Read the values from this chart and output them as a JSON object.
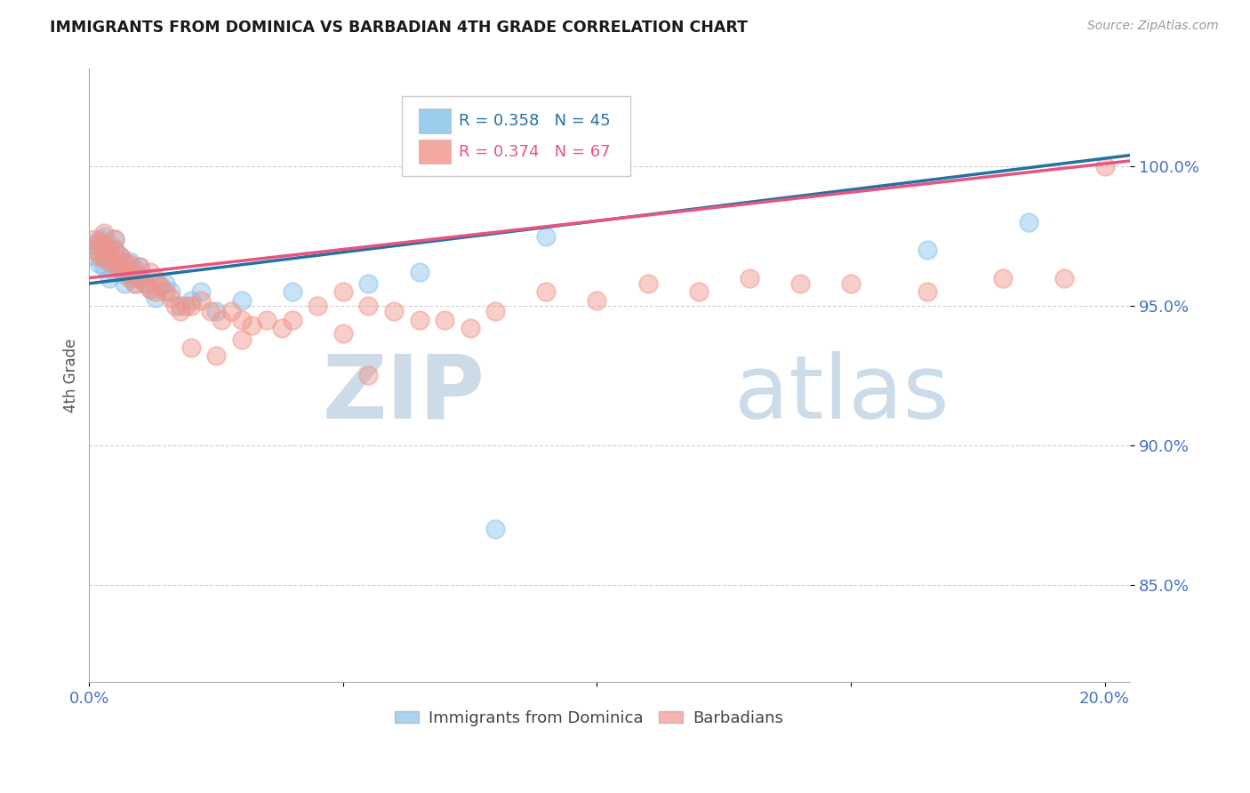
{
  "title": "IMMIGRANTS FROM DOMINICA VS BARBADIAN 4TH GRADE CORRELATION CHART",
  "source_text": "Source: ZipAtlas.com",
  "ylabel": "4th Grade",
  "xlim": [
    0.0,
    0.205
  ],
  "ylim": [
    0.815,
    1.035
  ],
  "yticks": [
    0.85,
    0.9,
    0.95,
    1.0
  ],
  "ytick_labels": [
    "85.0%",
    "90.0%",
    "95.0%",
    "100.0%"
  ],
  "xticks": [
    0.0,
    0.05,
    0.1,
    0.15,
    0.2
  ],
  "xtick_labels": [
    "0.0%",
    "",
    "",
    "",
    "20.0%"
  ],
  "legend_r1": "R = 0.358",
  "legend_n1": "N = 45",
  "legend_r2": "R = 0.374",
  "legend_n2": "N = 67",
  "series1_color": "#85c1e9",
  "series2_color": "#f1948a",
  "trend1_color": "#2471a3",
  "trend2_color": "#e75480",
  "watermark_zip": "ZIP",
  "watermark_atlas": "atlas",
  "watermark_color_zip": "#c8d8e8",
  "watermark_color_atlas": "#a8c0d8",
  "background_color": "#ffffff",
  "title_color": "#1a1a1a",
  "axis_label_color": "#555555",
  "tick_label_color": "#4472c4",
  "grid_color": "#d0d0d0",
  "series1_x": [
    0.001,
    0.001,
    0.002,
    0.002,
    0.002,
    0.003,
    0.003,
    0.003,
    0.003,
    0.004,
    0.004,
    0.004,
    0.005,
    0.005,
    0.005,
    0.005,
    0.006,
    0.006,
    0.007,
    0.007,
    0.007,
    0.008,
    0.008,
    0.009,
    0.009,
    0.01,
    0.01,
    0.011,
    0.012,
    0.013,
    0.014,
    0.015,
    0.016,
    0.018,
    0.02,
    0.022,
    0.025,
    0.03,
    0.04,
    0.055,
    0.065,
    0.08,
    0.09,
    0.165,
    0.185
  ],
  "series1_y": [
    0.972,
    0.968,
    0.974,
    0.971,
    0.965,
    0.975,
    0.97,
    0.968,
    0.964,
    0.972,
    0.966,
    0.96,
    0.974,
    0.97,
    0.966,
    0.962,
    0.968,
    0.963,
    0.965,
    0.961,
    0.958,
    0.966,
    0.962,
    0.963,
    0.958,
    0.964,
    0.96,
    0.958,
    0.956,
    0.953,
    0.957,
    0.958,
    0.955,
    0.95,
    0.952,
    0.955,
    0.948,
    0.952,
    0.955,
    0.958,
    0.962,
    0.87,
    0.975,
    0.97,
    0.98
  ],
  "series2_x": [
    0.001,
    0.001,
    0.002,
    0.002,
    0.003,
    0.003,
    0.003,
    0.004,
    0.004,
    0.005,
    0.005,
    0.005,
    0.006,
    0.006,
    0.007,
    0.007,
    0.008,
    0.008,
    0.009,
    0.009,
    0.01,
    0.01,
    0.011,
    0.012,
    0.012,
    0.013,
    0.013,
    0.014,
    0.015,
    0.016,
    0.017,
    0.018,
    0.019,
    0.02,
    0.022,
    0.024,
    0.026,
    0.028,
    0.03,
    0.032,
    0.035,
    0.038,
    0.04,
    0.045,
    0.05,
    0.055,
    0.06,
    0.07,
    0.09,
    0.1,
    0.12,
    0.14,
    0.05,
    0.065,
    0.08,
    0.11,
    0.13,
    0.15,
    0.165,
    0.18,
    0.192,
    0.02,
    0.025,
    0.03,
    0.055,
    0.075,
    0.2
  ],
  "series2_y": [
    0.974,
    0.97,
    0.973,
    0.968,
    0.976,
    0.972,
    0.967,
    0.97,
    0.966,
    0.974,
    0.97,
    0.965,
    0.968,
    0.963,
    0.966,
    0.962,
    0.965,
    0.96,
    0.962,
    0.958,
    0.964,
    0.96,
    0.958,
    0.962,
    0.956,
    0.96,
    0.955,
    0.957,
    0.955,
    0.953,
    0.95,
    0.948,
    0.95,
    0.95,
    0.952,
    0.948,
    0.945,
    0.948,
    0.945,
    0.943,
    0.945,
    0.942,
    0.945,
    0.95,
    0.955,
    0.95,
    0.948,
    0.945,
    0.955,
    0.952,
    0.955,
    0.958,
    0.94,
    0.945,
    0.948,
    0.958,
    0.96,
    0.958,
    0.955,
    0.96,
    0.96,
    0.935,
    0.932,
    0.938,
    0.925,
    0.942,
    1.0
  ]
}
